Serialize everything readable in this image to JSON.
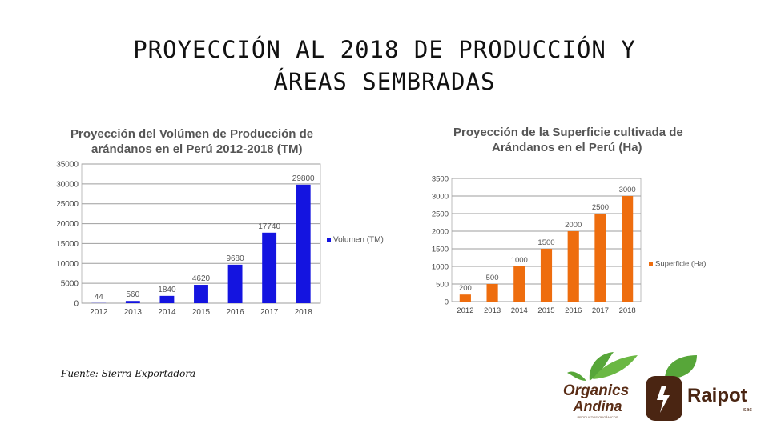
{
  "slide": {
    "title_line1": "PROYECCIÓN AL 2018 DE PRODUCCIÓN Y",
    "title_line2": "ÁREAS SEMBRADAS",
    "source": "Fuente: Sierra Exportadora"
  },
  "chart_data": [
    {
      "type": "bar",
      "title_line1": "Proyección del Volúmen de Producción de",
      "title_line2": "arándanos en el Perú 2012-2018 (TM)",
      "categories": [
        "2012",
        "2013",
        "2014",
        "2015",
        "2016",
        "2017",
        "2018"
      ],
      "series": [
        {
          "name": "Volumen (TM)",
          "values": [
            44,
            560,
            1840,
            4620,
            9680,
            17740,
            29800
          ]
        }
      ],
      "data_labels": [
        "44",
        "560",
        "1840",
        "4620",
        "9680",
        "17740",
        "29800"
      ],
      "yticks": [
        "0",
        "5000",
        "10000",
        "15000",
        "20000",
        "25000",
        "30000",
        "35000"
      ],
      "ylim": [
        0,
        35000
      ],
      "color": "#1414e0",
      "legend": "right",
      "grid": true
    },
    {
      "type": "bar",
      "title_line1": "Proyección de la Superficie cultivada de",
      "title_line2": "Arándanos en el Perú (Ha)",
      "categories": [
        "2012",
        "2013",
        "2014",
        "2015",
        "2016",
        "2017",
        "2018"
      ],
      "series": [
        {
          "name": "Superficie (Ha)",
          "values": [
            200,
            500,
            1000,
            1500,
            2000,
            2500,
            3000
          ]
        }
      ],
      "data_labels": [
        "200",
        "500",
        "1000",
        "1500",
        "2000",
        "2500",
        "3000"
      ],
      "yticks": [
        "0",
        "500",
        "1000",
        "1500",
        "2000",
        "2500",
        "3000",
        "3500"
      ],
      "ylim": [
        0,
        3500
      ],
      "color": "#ee6d0e",
      "legend": "right",
      "grid": true
    }
  ],
  "logos": {
    "organics_line1": "Organics",
    "organics_line2": "Andina",
    "organics_tagline": "PRODUCTOS ORGÁNICOS",
    "raipot_name": "Raipot",
    "raipot_suffix": "sac",
    "colors": {
      "green": "#57a639",
      "brown": "#5a2d16",
      "dark_brown": "#4a2512"
    }
  }
}
